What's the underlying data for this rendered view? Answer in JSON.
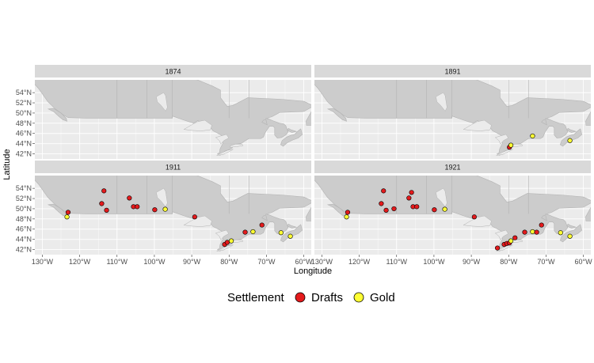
{
  "chart_data": {
    "type": "scatter",
    "xlabel": "Longitude",
    "ylabel": "Latitude",
    "xlim": [
      -132,
      -58
    ],
    "ylim": [
      41,
      56.5
    ],
    "x_ticks": [
      {
        "value": -130,
        "label": "130°W"
      },
      {
        "value": -120,
        "label": "120°W"
      },
      {
        "value": -110,
        "label": "110°W"
      },
      {
        "value": -100,
        "label": "100°W"
      },
      {
        "value": -90,
        "label": "90°W"
      },
      {
        "value": -80,
        "label": "80°W"
      },
      {
        "value": -70,
        "label": "70°W"
      },
      {
        "value": -60,
        "label": "60°W"
      }
    ],
    "y_ticks": [
      {
        "value": 42,
        "label": "42°N"
      },
      {
        "value": 44,
        "label": "44°N"
      },
      {
        "value": 46,
        "label": "46°N"
      },
      {
        "value": 48,
        "label": "48°N"
      },
      {
        "value": 50,
        "label": "50°N"
      },
      {
        "value": 52,
        "label": "52°N"
      },
      {
        "value": 54,
        "label": "54°N"
      }
    ],
    "grid": true,
    "legend": {
      "title": "Settlement",
      "position": "bottom",
      "entries": [
        {
          "label": "Drafts",
          "color": "#e41a1c"
        },
        {
          "label": "Gold",
          "color": "#ffff33"
        }
      ]
    },
    "panels": [
      {
        "title": "1874",
        "points": []
      },
      {
        "title": "1891",
        "points": [
          {
            "x": -79.8,
            "y": 43.3,
            "group": "Drafts"
          },
          {
            "x": -79.4,
            "y": 43.7,
            "group": "Gold"
          },
          {
            "x": -73.6,
            "y": 45.5,
            "group": "Gold"
          },
          {
            "x": -63.6,
            "y": 44.6,
            "group": "Gold"
          }
        ]
      },
      {
        "title": "1911",
        "points": [
          {
            "x": -123.1,
            "y": 49.3,
            "group": "Drafts"
          },
          {
            "x": -123.4,
            "y": 48.4,
            "group": "Gold"
          },
          {
            "x": -113.5,
            "y": 53.5,
            "group": "Drafts"
          },
          {
            "x": -114.1,
            "y": 51.0,
            "group": "Drafts"
          },
          {
            "x": -112.8,
            "y": 49.7,
            "group": "Drafts"
          },
          {
            "x": -106.7,
            "y": 52.1,
            "group": "Drafts"
          },
          {
            "x": -105.6,
            "y": 50.4,
            "group": "Drafts"
          },
          {
            "x": -104.6,
            "y": 50.4,
            "group": "Drafts"
          },
          {
            "x": -99.9,
            "y": 49.8,
            "group": "Drafts"
          },
          {
            "x": -97.1,
            "y": 49.9,
            "group": "Gold"
          },
          {
            "x": -89.2,
            "y": 48.4,
            "group": "Drafts"
          },
          {
            "x": -81.2,
            "y": 43.0,
            "group": "Drafts"
          },
          {
            "x": -80.5,
            "y": 43.4,
            "group": "Drafts"
          },
          {
            "x": -79.4,
            "y": 43.7,
            "group": "Gold"
          },
          {
            "x": -75.7,
            "y": 45.4,
            "group": "Drafts"
          },
          {
            "x": -73.6,
            "y": 45.5,
            "group": "Gold"
          },
          {
            "x": -71.2,
            "y": 46.8,
            "group": "Drafts"
          },
          {
            "x": -66.1,
            "y": 45.3,
            "group": "Gold"
          },
          {
            "x": -63.6,
            "y": 44.6,
            "group": "Gold"
          }
        ]
      },
      {
        "title": "1921",
        "points": [
          {
            "x": -123.1,
            "y": 49.3,
            "group": "Drafts"
          },
          {
            "x": -123.4,
            "y": 48.4,
            "group": "Gold"
          },
          {
            "x": -113.5,
            "y": 53.5,
            "group": "Drafts"
          },
          {
            "x": -114.1,
            "y": 51.0,
            "group": "Drafts"
          },
          {
            "x": -112.8,
            "y": 49.7,
            "group": "Drafts"
          },
          {
            "x": -110.7,
            "y": 50.0,
            "group": "Drafts"
          },
          {
            "x": -106.7,
            "y": 52.1,
            "group": "Drafts"
          },
          {
            "x": -106.0,
            "y": 53.2,
            "group": "Drafts"
          },
          {
            "x": -105.6,
            "y": 50.4,
            "group": "Drafts"
          },
          {
            "x": -104.6,
            "y": 50.4,
            "group": "Drafts"
          },
          {
            "x": -99.9,
            "y": 49.8,
            "group": "Drafts"
          },
          {
            "x": -97.1,
            "y": 49.9,
            "group": "Gold"
          },
          {
            "x": -89.2,
            "y": 48.4,
            "group": "Drafts"
          },
          {
            "x": -83.0,
            "y": 42.3,
            "group": "Drafts"
          },
          {
            "x": -81.2,
            "y": 43.0,
            "group": "Drafts"
          },
          {
            "x": -80.5,
            "y": 43.2,
            "group": "Drafts"
          },
          {
            "x": -79.8,
            "y": 43.3,
            "group": "Drafts"
          },
          {
            "x": -79.4,
            "y": 43.7,
            "group": "Gold"
          },
          {
            "x": -78.3,
            "y": 44.3,
            "group": "Drafts"
          },
          {
            "x": -75.7,
            "y": 45.4,
            "group": "Drafts"
          },
          {
            "x": -73.6,
            "y": 45.5,
            "group": "Gold"
          },
          {
            "x": -72.5,
            "y": 45.4,
            "group": "Drafts"
          },
          {
            "x": -71.2,
            "y": 46.8,
            "group": "Drafts"
          },
          {
            "x": -66.1,
            "y": 45.3,
            "group": "Gold"
          },
          {
            "x": -63.6,
            "y": 44.6,
            "group": "Gold"
          }
        ]
      }
    ],
    "colors": {
      "panel_background": "#ebebeb",
      "strip_background": "#d9d9d9",
      "grid_line": "#ffffff",
      "land": "#cccccc",
      "land_outline": "#b3b3b3",
      "point_outline": "#000000"
    }
  }
}
